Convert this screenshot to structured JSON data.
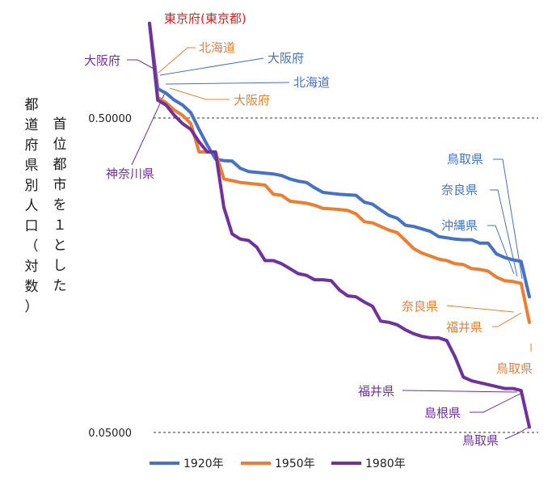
{
  "chart_data": {
    "type": "line",
    "ylabel_outer": "都道府県別人口（対数）",
    "ylabel_inner": "首位都市を１とした",
    "y_scale": "log",
    "ylim": [
      0.045,
      1.15
    ],
    "y_ticks": [
      {
        "value": 0.5,
        "label": "0.50000"
      },
      {
        "value": 0.05,
        "label": "0.05000"
      }
    ],
    "grid": "dashed at ticks",
    "legend_position": "bottom",
    "n_points": 47,
    "series": [
      {
        "name": "1920年",
        "color": "#4472C4",
        "values": [
          1.0,
          0.62,
          0.6,
          0.57,
          0.55,
          0.52,
          0.46,
          0.41,
          0.37,
          0.366,
          0.365,
          0.346,
          0.338,
          0.336,
          0.334,
          0.332,
          0.328,
          0.32,
          0.315,
          0.312,
          0.3,
          0.29,
          0.288,
          0.286,
          0.285,
          0.284,
          0.27,
          0.266,
          0.255,
          0.245,
          0.24,
          0.228,
          0.226,
          0.222,
          0.218,
          0.21,
          0.208,
          0.206,
          0.205,
          0.205,
          0.2,
          0.2,
          0.185,
          0.18,
          0.177,
          0.175,
          0.135
        ]
      },
      {
        "name": "1950年",
        "color": "#ED7D31",
        "values": [
          1.0,
          0.58,
          0.56,
          0.53,
          0.51,
          0.48,
          0.39,
          0.39,
          0.39,
          0.32,
          0.316,
          0.312,
          0.31,
          0.308,
          0.306,
          0.286,
          0.284,
          0.272,
          0.27,
          0.268,
          0.264,
          0.258,
          0.257,
          0.256,
          0.254,
          0.248,
          0.234,
          0.232,
          0.226,
          0.22,
          0.216,
          0.204,
          0.192,
          0.186,
          0.182,
          0.178,
          0.176,
          0.172,
          0.171,
          0.166,
          0.165,
          0.163,
          0.156,
          0.152,
          0.151,
          0.149,
          0.112
        ]
      },
      {
        "name": "1980年",
        "color": "#7030A0",
        "values": [
          1.0,
          0.57,
          0.55,
          0.51,
          0.48,
          0.46,
          0.42,
          0.39,
          0.39,
          0.26,
          0.214,
          0.206,
          0.204,
          0.194,
          0.176,
          0.176,
          0.172,
          0.166,
          0.16,
          0.158,
          0.153,
          0.153,
          0.152,
          0.142,
          0.136,
          0.135,
          0.13,
          0.126,
          0.113,
          0.112,
          0.11,
          0.106,
          0.103,
          0.101,
          0.1,
          0.1,
          0.098,
          0.087,
          0.075,
          0.073,
          0.072,
          0.071,
          0.07,
          0.069,
          0.069,
          0.068,
          0.052
        ]
      }
    ],
    "annotations": [
      {
        "text": "東京府(東京都)",
        "color": "#E02020"
      },
      {
        "text": "北海道",
        "color": "#ED7D31"
      },
      {
        "text": "大阪府",
        "color": "#4472C4"
      },
      {
        "text": "大阪府",
        "color": "#7030A0"
      },
      {
        "text": "北海道",
        "color": "#4472C4"
      },
      {
        "text": "大阪府",
        "color": "#ED7D31"
      },
      {
        "text": "神奈川県",
        "color": "#7030A0"
      },
      {
        "text": "鳥取県",
        "color": "#4472C4"
      },
      {
        "text": "奈良県",
        "color": "#4472C4"
      },
      {
        "text": "沖縄県",
        "color": "#4472C4"
      },
      {
        "text": "奈良県",
        "color": "#ED7D31"
      },
      {
        "text": "福井県",
        "color": "#ED7D31"
      },
      {
        "text": "鳥取県",
        "color": "#ED7D31"
      },
      {
        "text": "福井県",
        "color": "#7030A0"
      },
      {
        "text": "島根県",
        "color": "#7030A0"
      },
      {
        "text": "鳥取県",
        "color": "#7030A0"
      }
    ]
  }
}
